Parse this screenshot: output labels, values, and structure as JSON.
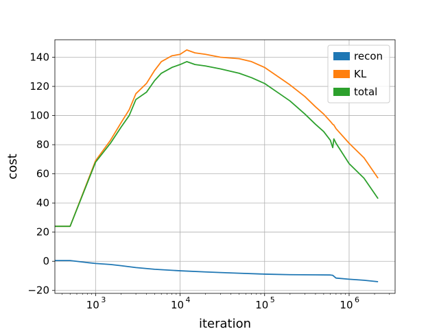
{
  "chart_data": {
    "type": "line",
    "title": "",
    "xlabel": "iteration",
    "ylabel": "cost",
    "xscale": "log",
    "xlim": [
      330,
      3500000
    ],
    "ylim": [
      -22,
      152
    ],
    "grid": true,
    "legend_position": "top-right",
    "xticks": [
      {
        "value": 1000,
        "label": "10",
        "exp": "3"
      },
      {
        "value": 10000,
        "label": "10",
        "exp": "4"
      },
      {
        "value": 100000,
        "label": "10",
        "exp": "5"
      },
      {
        "value": 1000000,
        "label": "10",
        "exp": "6"
      }
    ],
    "yticks": [
      {
        "value": -20,
        "label": "−20"
      },
      {
        "value": 0,
        "label": "0"
      },
      {
        "value": 20,
        "label": "20"
      },
      {
        "value": 40,
        "label": "40"
      },
      {
        "value": 60,
        "label": "60"
      },
      {
        "value": 80,
        "label": "80"
      },
      {
        "value": 100,
        "label": "100"
      },
      {
        "value": 120,
        "label": "120"
      },
      {
        "value": 140,
        "label": "140"
      }
    ],
    "series": [
      {
        "name": "recon",
        "color": "#1f77b4",
        "x": [
          330,
          500,
          700,
          1000,
          1500,
          2000,
          3000,
          5000,
          10000,
          20000,
          30000,
          50000,
          100000,
          200000,
          400000,
          600000,
          640000,
          700000,
          1000000,
          1500000,
          2200000
        ],
        "y": [
          0.5,
          0.5,
          -0.5,
          -1.5,
          -2.2,
          -3,
          -4.3,
          -5.5,
          -6.5,
          -7.3,
          -7.7,
          -8.2,
          -8.8,
          -9.2,
          -9.3,
          -9.4,
          -9.6,
          -11.5,
          -12.3,
          -13,
          -14
        ]
      },
      {
        "name": "KL",
        "color": "#ff7f0e",
        "x": [
          330,
          500,
          1000,
          1500,
          2000,
          2500,
          3000,
          4000,
          5000,
          6000,
          8000,
          10000,
          12000,
          15000,
          20000,
          30000,
          50000,
          70000,
          100000,
          150000,
          200000,
          300000,
          400000,
          500000,
          600000,
          640000,
          660000,
          700000,
          1000000,
          1500000,
          2200000
        ],
        "y": [
          24,
          24,
          69,
          83,
          95,
          104,
          115,
          122,
          131,
          137,
          141,
          142,
          145,
          143,
          142,
          140,
          139,
          137,
          133,
          126,
          121,
          113,
          106,
          101,
          96,
          94,
          93.5,
          91,
          81,
          71,
          57
        ]
      },
      {
        "name": "total",
        "color": "#2ca02c",
        "x": [
          330,
          500,
          1000,
          1500,
          2000,
          2500,
          3000,
          4000,
          5000,
          6000,
          8000,
          10000,
          12000,
          15000,
          20000,
          30000,
          50000,
          70000,
          100000,
          150000,
          200000,
          300000,
          400000,
          500000,
          600000,
          640000,
          660000,
          700000,
          1000000,
          1500000,
          2200000
        ],
        "y": [
          24,
          24,
          68,
          81,
          92,
          100,
          111,
          116,
          124,
          129,
          133,
          135,
          137,
          135,
          134,
          132,
          129,
          126,
          122,
          115,
          110,
          101,
          94,
          89,
          83,
          78,
          84,
          81,
          67,
          57,
          43
        ]
      }
    ]
  }
}
